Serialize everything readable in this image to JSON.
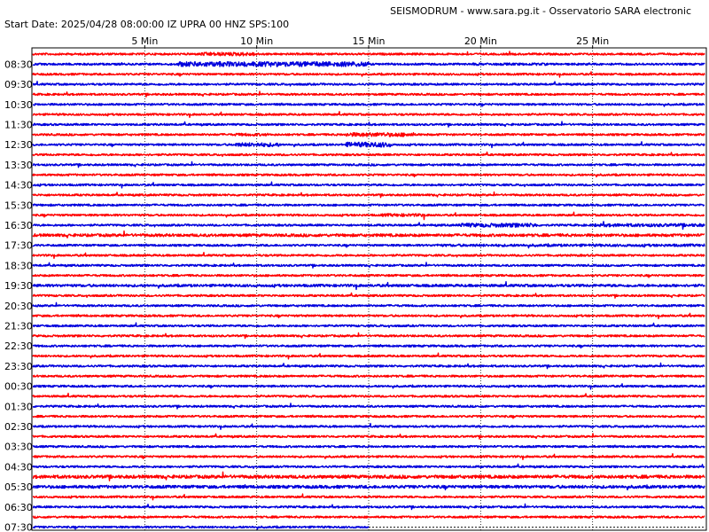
{
  "header": {
    "source": "SEISMODRUM - www.sara.pg.it - Osservatorio SARA electronic",
    "start_info": "Start Date: 2025/04/28 08:00:00 IZ UPRA 00 HNZ  SPS:100"
  },
  "colors": {
    "red": "#ff0000",
    "blue": "#0000dd",
    "grid": "#000000"
  },
  "chart_data": {
    "type": "line",
    "title": "SEISMODRUM - www.sara.pg.it - Osservatorio SARA electronic",
    "subtitle": "Start Date: 2025/04/28 08:00:00 IZ UPRA 00 HNZ  SPS:100",
    "x_unit": "Min",
    "x_range": [
      0,
      30
    ],
    "x_ticks": [
      {
        "value": 5,
        "label": "5 Min"
      },
      {
        "value": 10,
        "label": "10 Min"
      },
      {
        "value": 15,
        "label": "15 Min"
      },
      {
        "value": 20,
        "label": "20 Min"
      },
      {
        "value": 25,
        "label": "25 Min"
      }
    ],
    "row_labels": [
      "08:30",
      "09:30",
      "10:30",
      "11:30",
      "12:30",
      "13:30",
      "14:30",
      "15:30",
      "16:30",
      "17:30",
      "18:30",
      "19:30",
      "20:30",
      "21:30",
      "22:30",
      "23:30",
      "00:30",
      "01:30",
      "02:30",
      "03:30",
      "04:30",
      "05:30",
      "06:30",
      "07:30"
    ],
    "trace_count": 48,
    "trace_minutes": 30,
    "trace_colors": [
      "red",
      "blue"
    ],
    "last_trace_end_minute": 15,
    "events": [
      {
        "trace": 0,
        "start_min": 7.5,
        "end_min": 10.0,
        "strength": 1.8
      },
      {
        "trace": 1,
        "start_min": 6.5,
        "end_min": 15.0,
        "strength": 2.5
      },
      {
        "trace": 1,
        "start_min": 19.5,
        "end_min": 23.0,
        "strength": 1.2
      },
      {
        "trace": 8,
        "start_min": 9.0,
        "end_min": 10.5,
        "strength": 1.4
      },
      {
        "trace": 8,
        "start_min": 14.0,
        "end_min": 17.0,
        "strength": 2.0
      },
      {
        "trace": 9,
        "start_min": 9.0,
        "end_min": 11.0,
        "strength": 2.0
      },
      {
        "trace": 9,
        "start_min": 14.0,
        "end_min": 16.0,
        "strength": 2.5
      },
      {
        "trace": 16,
        "start_min": 15.5,
        "end_min": 17.5,
        "strength": 1.5
      },
      {
        "trace": 17,
        "start_min": 19.0,
        "end_min": 22.5,
        "strength": 2.0
      },
      {
        "trace": 17,
        "start_min": 25.0,
        "end_min": 30.0,
        "strength": 1.6
      },
      {
        "trace": 18,
        "start_min": 0,
        "end_min": 30,
        "strength": 1.4
      },
      {
        "trace": 19,
        "start_min": 18.0,
        "end_min": 30.0,
        "strength": 1.3
      },
      {
        "trace": 23,
        "start_min": 0,
        "end_min": 30,
        "strength": 1.3
      },
      {
        "trace": 42,
        "start_min": 0,
        "end_min": 30,
        "strength": 1.6
      },
      {
        "trace": 43,
        "start_min": 0,
        "end_min": 30,
        "strength": 1.5
      }
    ],
    "grid": "dotted vertical at 5-minute marks"
  }
}
